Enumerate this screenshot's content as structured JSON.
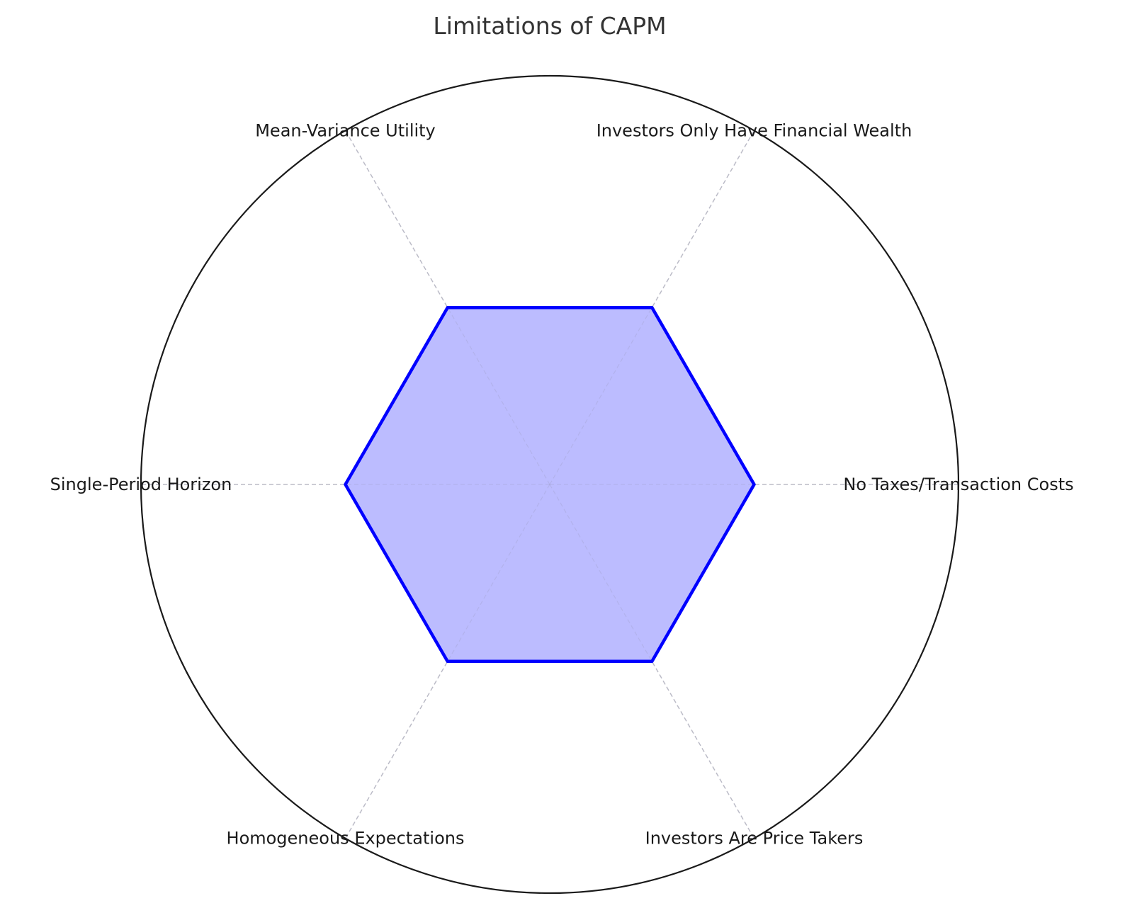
{
  "chart_data": {
    "type": "radar",
    "title": "Limitations of CAPM",
    "categories": [
      "No Taxes/Transaction Costs",
      "Investors Only Have Financial Wealth",
      "Mean-Variance Utility",
      "Single-Period Horizon",
      "Homogeneous Expectations",
      "Investors Are Price Takers"
    ],
    "series": [
      {
        "values": [
          0.5,
          0.5,
          0.5,
          0.5,
          0.5,
          0.5
        ],
        "line_color": "#0000ff",
        "fill_color": "#bcbcff"
      }
    ],
    "rlim": [
      0,
      1
    ],
    "grid": true,
    "grid_style": "dashed",
    "radial_tick_labels": false
  }
}
